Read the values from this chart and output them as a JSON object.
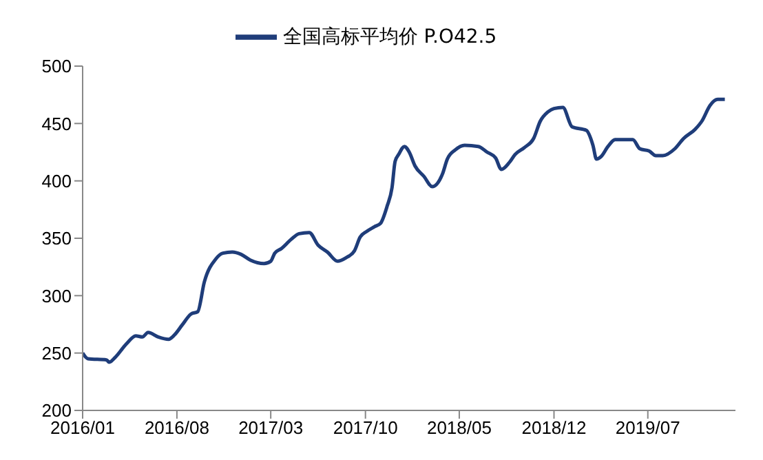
{
  "chart_data": {
    "type": "line",
    "legend": "top",
    "grid": false,
    "marker": "none",
    "line_style": "solid",
    "x": [
      "2016-01-01",
      "2016-01-13",
      "2016-02-24",
      "2016-03-01",
      "2016-03-14",
      "2016-04-09",
      "2016-04-30",
      "2016-05-15",
      "2016-05-28",
      "2016-06-20",
      "2016-07-13",
      "2016-07-27",
      "2016-08-12",
      "2016-09-02",
      "2016-09-17",
      "2016-10-02",
      "2016-10-28",
      "2016-11-13",
      "2016-12-04",
      "2016-12-24",
      "2017-01-14",
      "2017-02-14",
      "2017-03-01",
      "2017-03-10",
      "2017-03-25",
      "2017-04-16",
      "2017-05-04",
      "2017-05-27",
      "2017-06-16",
      "2017-07-07",
      "2017-07-30",
      "2017-08-18",
      "2017-09-06",
      "2017-09-19",
      "2017-10-04",
      "2017-10-21",
      "2017-11-04",
      "2017-11-19",
      "2017-11-30",
      "2017-12-07",
      "2017-12-15",
      "2017-12-28",
      "2018-01-08",
      "2018-01-21",
      "2018-02-10",
      "2018-03-01",
      "2018-03-24",
      "2018-04-04",
      "2018-04-22",
      "2018-05-13",
      "2018-06-13",
      "2018-07-03",
      "2018-07-22",
      "2018-08-04",
      "2018-08-22",
      "2018-09-04",
      "2018-09-25",
      "2018-10-16",
      "2018-10-31",
      "2018-11-17",
      "2018-12-01",
      "2018-12-21",
      "2019-01-11",
      "2019-02-12",
      "2019-02-27",
      "2019-03-07",
      "2019-03-17",
      "2019-04-02",
      "2019-04-18",
      "2019-05-28",
      "2019-06-13",
      "2019-07-04",
      "2019-07-19",
      "2019-08-04",
      "2019-08-31",
      "2019-09-20",
      "2019-10-16",
      "2019-10-31",
      "2019-11-19",
      "2019-12-06",
      "2019-12-22"
    ],
    "series": [
      {
        "name": "全国高标平均价 P.O42.5",
        "color": "#1f3d7a",
        "values": [
          250,
          245,
          244,
          242,
          246,
          258,
          265,
          264,
          268,
          264,
          262,
          266,
          274,
          284,
          286,
          312,
          332,
          337,
          338,
          336,
          331,
          328,
          330,
          337,
          341,
          349,
          354,
          355,
          344,
          338,
          330,
          333,
          339,
          351,
          356,
          360,
          363,
          378,
          394,
          417,
          423,
          430,
          425,
          413,
          404,
          395,
          406,
          419,
          427,
          431,
          430,
          425,
          420,
          410,
          416,
          423,
          429,
          437,
          452,
          460,
          463,
          464,
          447,
          444,
          431,
          419,
          421,
          430,
          436,
          436,
          428,
          426,
          422,
          422,
          428,
          437,
          445,
          452,
          466,
          471,
          471
        ]
      }
    ],
    "xlim": [
      "2016-01-01",
      "2020-01-15"
    ],
    "xticks": [
      {
        "value": "2016-01-01",
        "label": "2016/01"
      },
      {
        "value": "2016-08-01",
        "label": "2016/08"
      },
      {
        "value": "2017-03-01",
        "label": "2017/03"
      },
      {
        "value": "2017-10-01",
        "label": "2017/10"
      },
      {
        "value": "2018-05-01",
        "label": "2018/05"
      },
      {
        "value": "2018-12-01",
        "label": "2018/12"
      },
      {
        "value": "2019-07-01",
        "label": "2019/07"
      }
    ],
    "ylim": [
      200,
      500
    ],
    "yticks": [
      200,
      250,
      300,
      350,
      400,
      450,
      500
    ]
  }
}
